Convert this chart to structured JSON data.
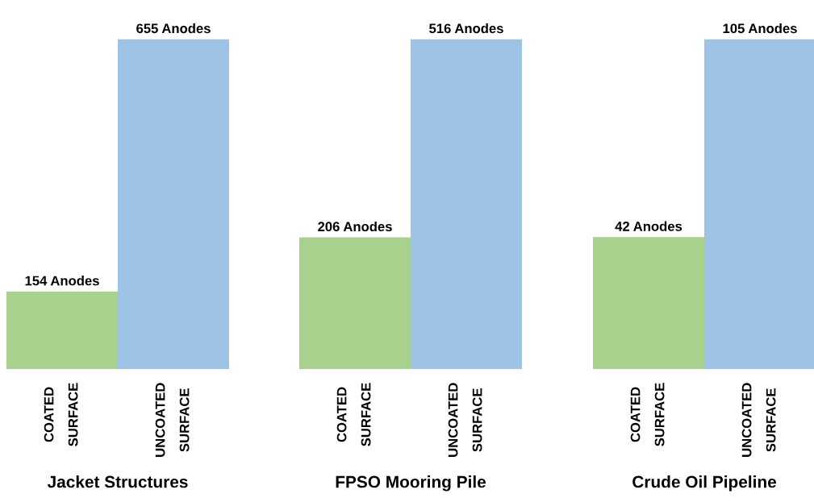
{
  "chart_data": [
    {
      "type": "bar",
      "title": "Jacket Structures",
      "categories": [
        "COATED\nSURFACE",
        "UNCOATED\nSURFACE"
      ],
      "values": [
        154,
        655
      ],
      "colors": [
        "#a9d18e",
        "#9dc3e6"
      ],
      "value_labels": [
        "154 Anodes",
        "655 Anodes"
      ],
      "tick_labels": "x",
      "grid": false,
      "legend": false
    },
    {
      "type": "bar",
      "title": "FPSO Mooring Pile",
      "categories": [
        "COATED\nSURFACE",
        "UNCOATED\nSURFACE"
      ],
      "values": [
        206,
        516
      ],
      "colors": [
        "#a9d18e",
        "#9dc3e6"
      ],
      "value_labels": [
        "206 Anodes",
        "516 Anodes"
      ],
      "tick_labels": "x",
      "grid": false,
      "legend": false
    },
    {
      "type": "bar",
      "title": "Crude Oil Pipeline",
      "categories": [
        "COATED\nSURFACE",
        "UNCOATED\nSURFACE"
      ],
      "values": [
        42,
        105
      ],
      "colors": [
        "#a9d18e",
        "#9dc3e6"
      ],
      "value_labels": [
        "42 Anodes",
        "105 Anodes"
      ],
      "tick_labels": "x",
      "grid": false,
      "legend": false
    }
  ]
}
